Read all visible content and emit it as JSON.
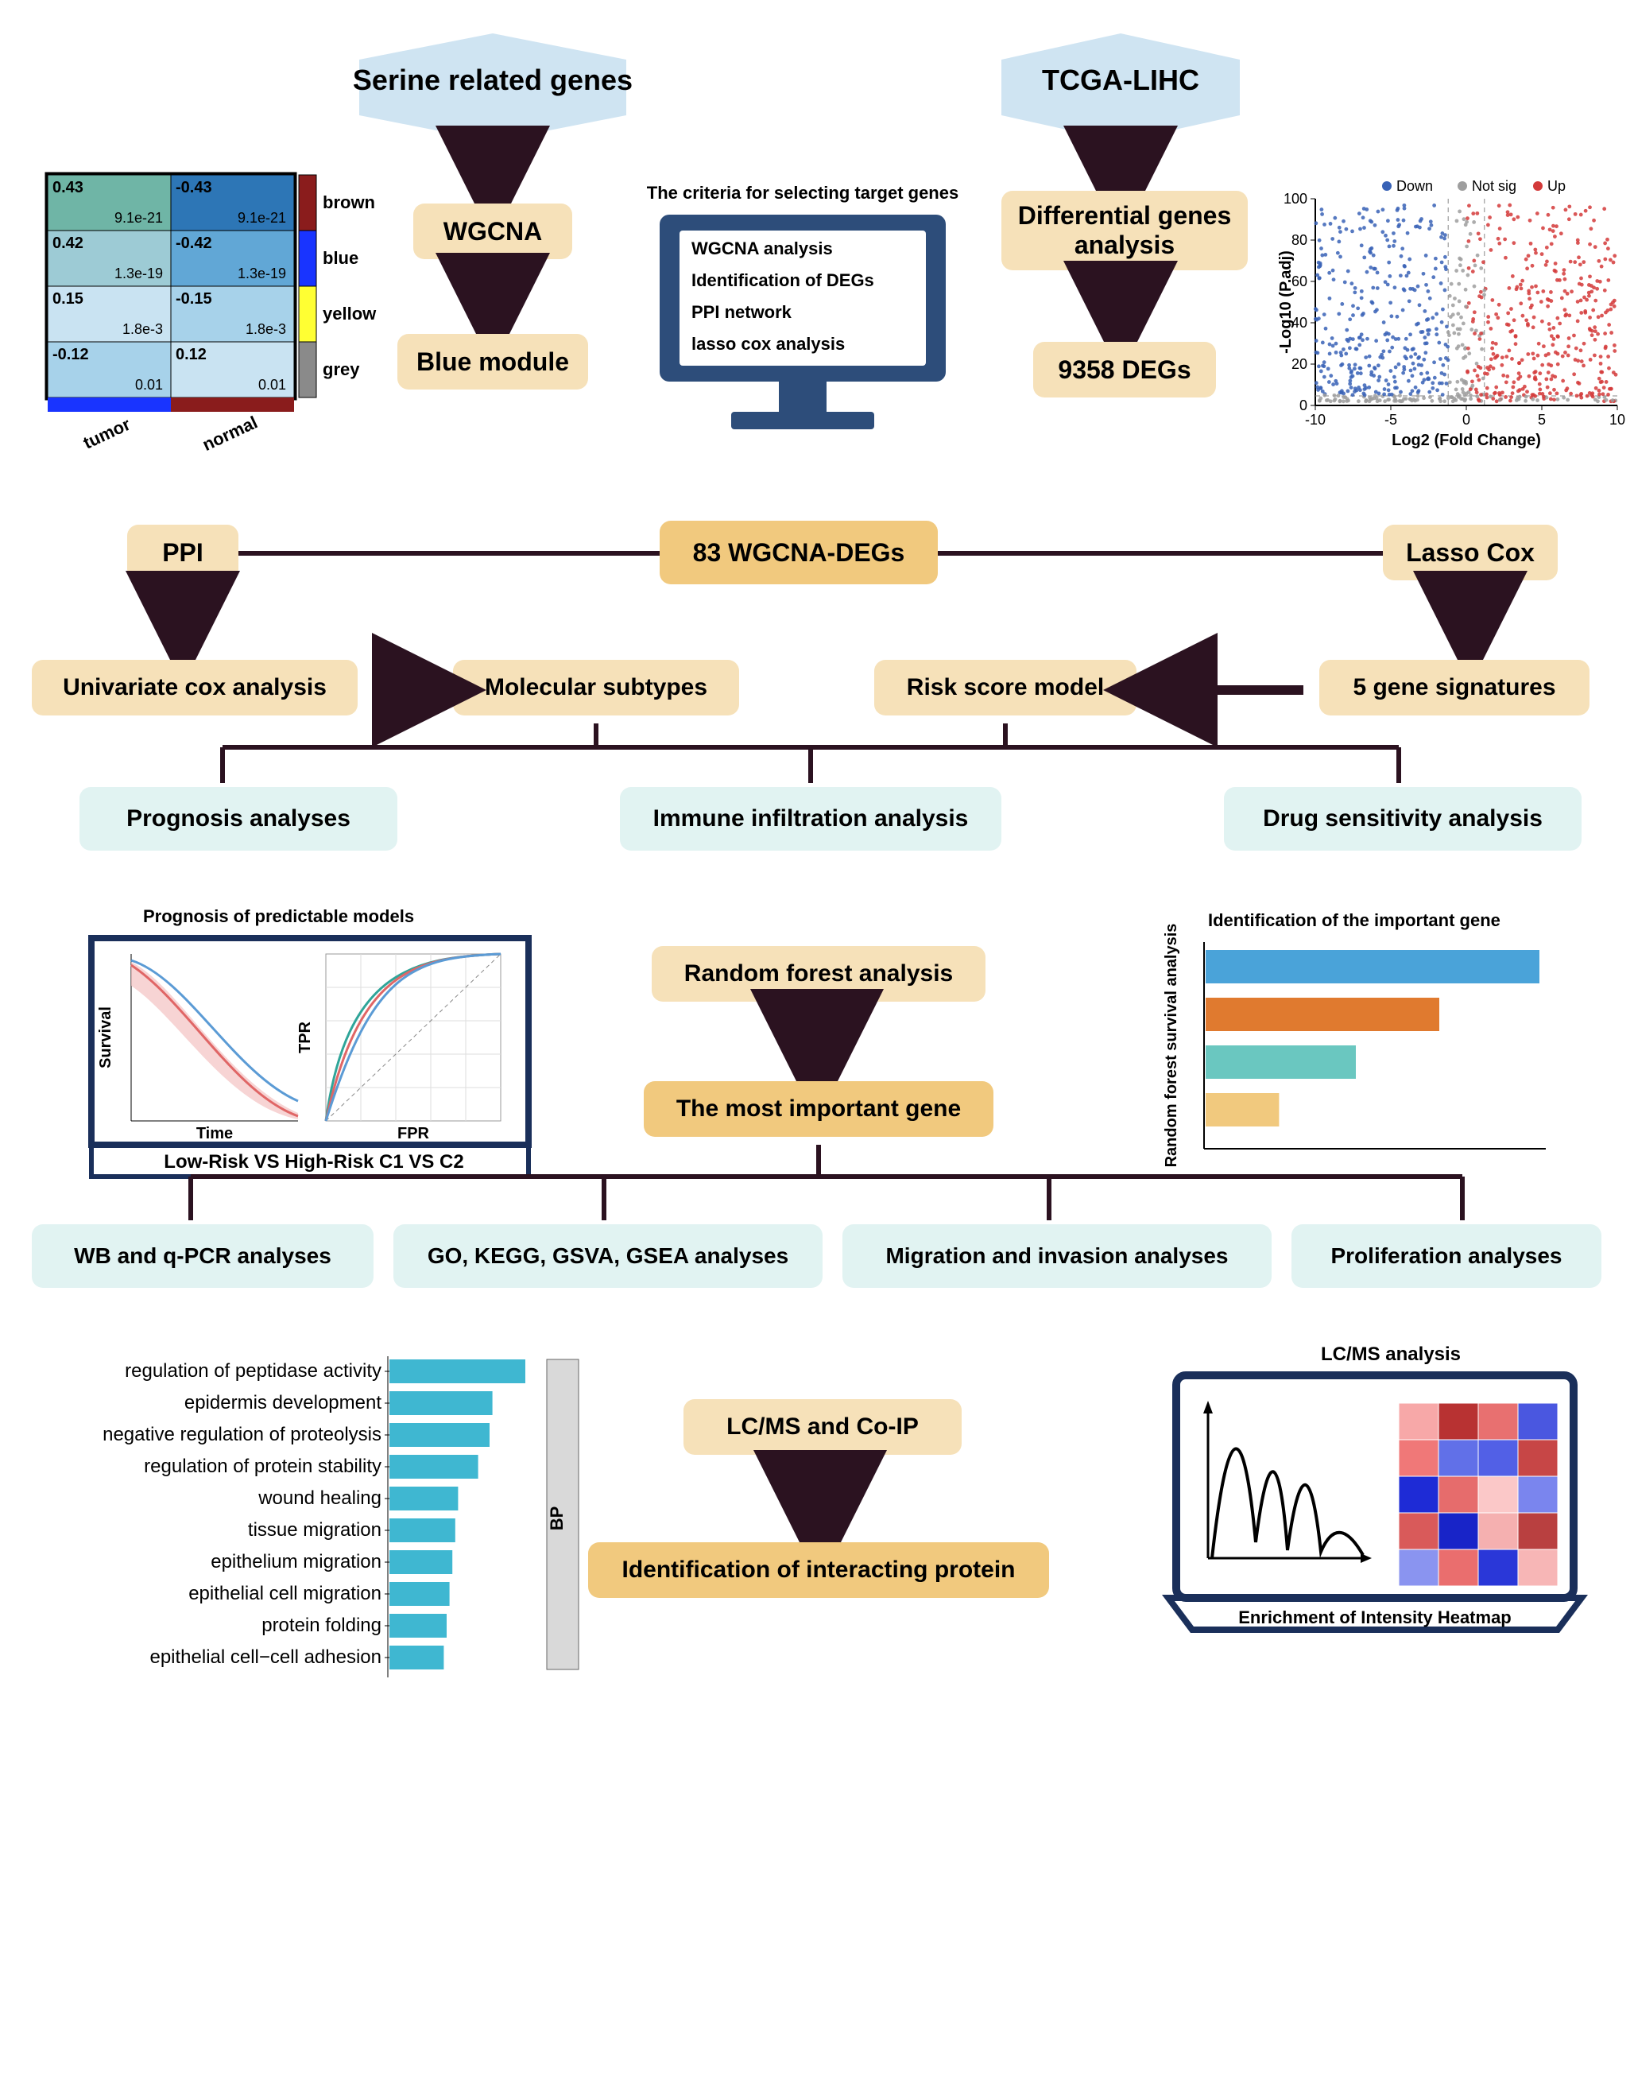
{
  "colors": {
    "hex_bg": "#cfe4f2",
    "beige": "#f6e1b9",
    "beige_strong": "#f1c97e",
    "mint": "#e1f3f2",
    "arrow": "#2b1220",
    "monitor": "#2d4d7a",
    "monitor_text": "#000000",
    "volcano_down": "#3862b6",
    "volcano_up": "#d33a3a",
    "volcano_notsig": "#9e9e9e",
    "heat_brown": "#8a1c1c",
    "heat_blue": "#1934ff",
    "heat_yellow": "#ffff33",
    "heat_grey": "#8a8a8a",
    "heat_cell_teal1": "#6fb5a6",
    "heat_cell_teal2": "#9dcbd5",
    "heat_cell_blue1": "#2d76b6",
    "heat_cell_blue2": "#61a7d6",
    "heat_cell_blue3": "#a7d2ea",
    "heat_cell_blue4": "#c9e3f2",
    "rf_bar1": "#4aa3d9",
    "rf_bar2": "#e07a2f",
    "rf_bar3": "#6ac7c0",
    "rf_bar4": "#f1c97e",
    "go_bar": "#3fb7d1",
    "km_red": "#e06666",
    "km_blue": "#5b9bd5",
    "km_teal": "#2fa599",
    "border_dark": "#1a2f5a"
  },
  "top_hex": {
    "left": "Serine related genes",
    "right": "TCGA-LIHC"
  },
  "left_chain": [
    "WGCNA",
    "Blue module"
  ],
  "right_chain": [
    "Differential genes\nanalysis",
    "9358 DEGs"
  ],
  "monitor": {
    "title": "The criteria for selecting target genes",
    "items": [
      "WGCNA analysis",
      "Identification of DEGs",
      "PPI network",
      "lasso cox analysis"
    ]
  },
  "heatmap": {
    "col_labels": [
      "tumor",
      "normal"
    ],
    "row_labels": [
      "brown",
      "blue",
      "yellow",
      "grey"
    ],
    "row_label_colors": [
      "#8a1c1c",
      "#1934ff",
      "#ffff33",
      "#8a8a8a"
    ],
    "cells": [
      {
        "v": "0.43",
        "p": "9.1e-21",
        "fill": "#6fb5a6"
      },
      {
        "v": "-0.43",
        "p": "9.1e-21",
        "fill": "#2d76b6"
      },
      {
        "v": "0.42",
        "p": "1.3e-19",
        "fill": "#9dcbd5"
      },
      {
        "v": "-0.42",
        "p": "1.3e-19",
        "fill": "#61a7d6"
      },
      {
        "v": "0.15",
        "p": "1.8e-3",
        "fill": "#c9e3f2"
      },
      {
        "v": "-0.15",
        "p": "1.8e-3",
        "fill": "#a7d2ea"
      },
      {
        "v": "-0.12",
        "p": "0.01",
        "fill": "#a7d2ea"
      },
      {
        "v": "0.12",
        "p": "0.01",
        "fill": "#c9e3f2"
      }
    ]
  },
  "volcano": {
    "title_legend": [
      "Down",
      "Not sig",
      "Up"
    ],
    "xaxis": "Log2 (Fold Change)",
    "yaxis": "-Log10 (P.adj)",
    "xrange": [
      -10,
      10
    ],
    "yrange": [
      0,
      100
    ],
    "xticks": [
      -10,
      -5,
      0,
      5,
      10
    ],
    "yticks": [
      0,
      20,
      40,
      60,
      80,
      100
    ]
  },
  "mid_row": {
    "left": "PPI",
    "center": "83 WGCNA-DEGs",
    "right": "Lasso Cox"
  },
  "row4": [
    "Univariate cox analysis",
    "Molecular subtypes",
    "Risk score model",
    "5 gene signatures"
  ],
  "row5": [
    "Prognosis analyses",
    "Immune infiltration analysis",
    "Drug sensitivity analysis"
  ],
  "km": {
    "title": "Prognosis of predictable models",
    "caption": "Low-Risk VS High-Risk  C1 VS C2",
    "ylab": "Survival",
    "xlab": "Time",
    "roc_y": "TPR",
    "roc_x": "FPR"
  },
  "rf": {
    "title": "Identification of the important  gene",
    "ylab": "Random forest survival analysis",
    "bars": [
      100,
      70,
      45,
      22
    ]
  },
  "rf_flow": [
    "Random forest analysis",
    "The most important gene"
  ],
  "row7": [
    "WB and q-PCR analyses",
    "GO, KEGG, GSVA, GSEA analyses",
    "Migration and invasion analyses",
    "Proliferation analyses"
  ],
  "go": {
    "label_block": "BP",
    "terms": [
      {
        "t": "regulation of peptidase activity",
        "v": 95
      },
      {
        "t": "epidermis development",
        "v": 72
      },
      {
        "t": "negative regulation of proteolysis",
        "v": 70
      },
      {
        "t": "regulation of protein stability",
        "v": 62
      },
      {
        "t": "wound healing",
        "v": 48
      },
      {
        "t": "tissue migration",
        "v": 46
      },
      {
        "t": "epithelium migration",
        "v": 44
      },
      {
        "t": "epithelial cell migration",
        "v": 42
      },
      {
        "t": "protein folding",
        "v": 40
      },
      {
        "t": "epithelial cell−cell adhesion",
        "v": 38
      }
    ]
  },
  "bottom_flow": [
    "LC/MS and Co-IP",
    "Identification of interacting protein"
  ],
  "lcms": {
    "title": "LC/MS analysis",
    "caption": "Enrichment of Intensity Heatmap",
    "heat_colors": [
      [
        "#f7a8a8",
        "#b83232",
        "#e87070",
        "#4a57e0"
      ],
      [
        "#f07878",
        "#6170e8",
        "#5260e6",
        "#c74646"
      ],
      [
        "#1e2bd6",
        "#e66c6c",
        "#fbc8c8",
        "#7a85ee"
      ],
      [
        "#d95a5a",
        "#1824c8",
        "#f5b0b0",
        "#b94040"
      ],
      [
        "#8a94f0",
        "#ea6e6e",
        "#2a37d8",
        "#f7b6b6"
      ]
    ]
  }
}
